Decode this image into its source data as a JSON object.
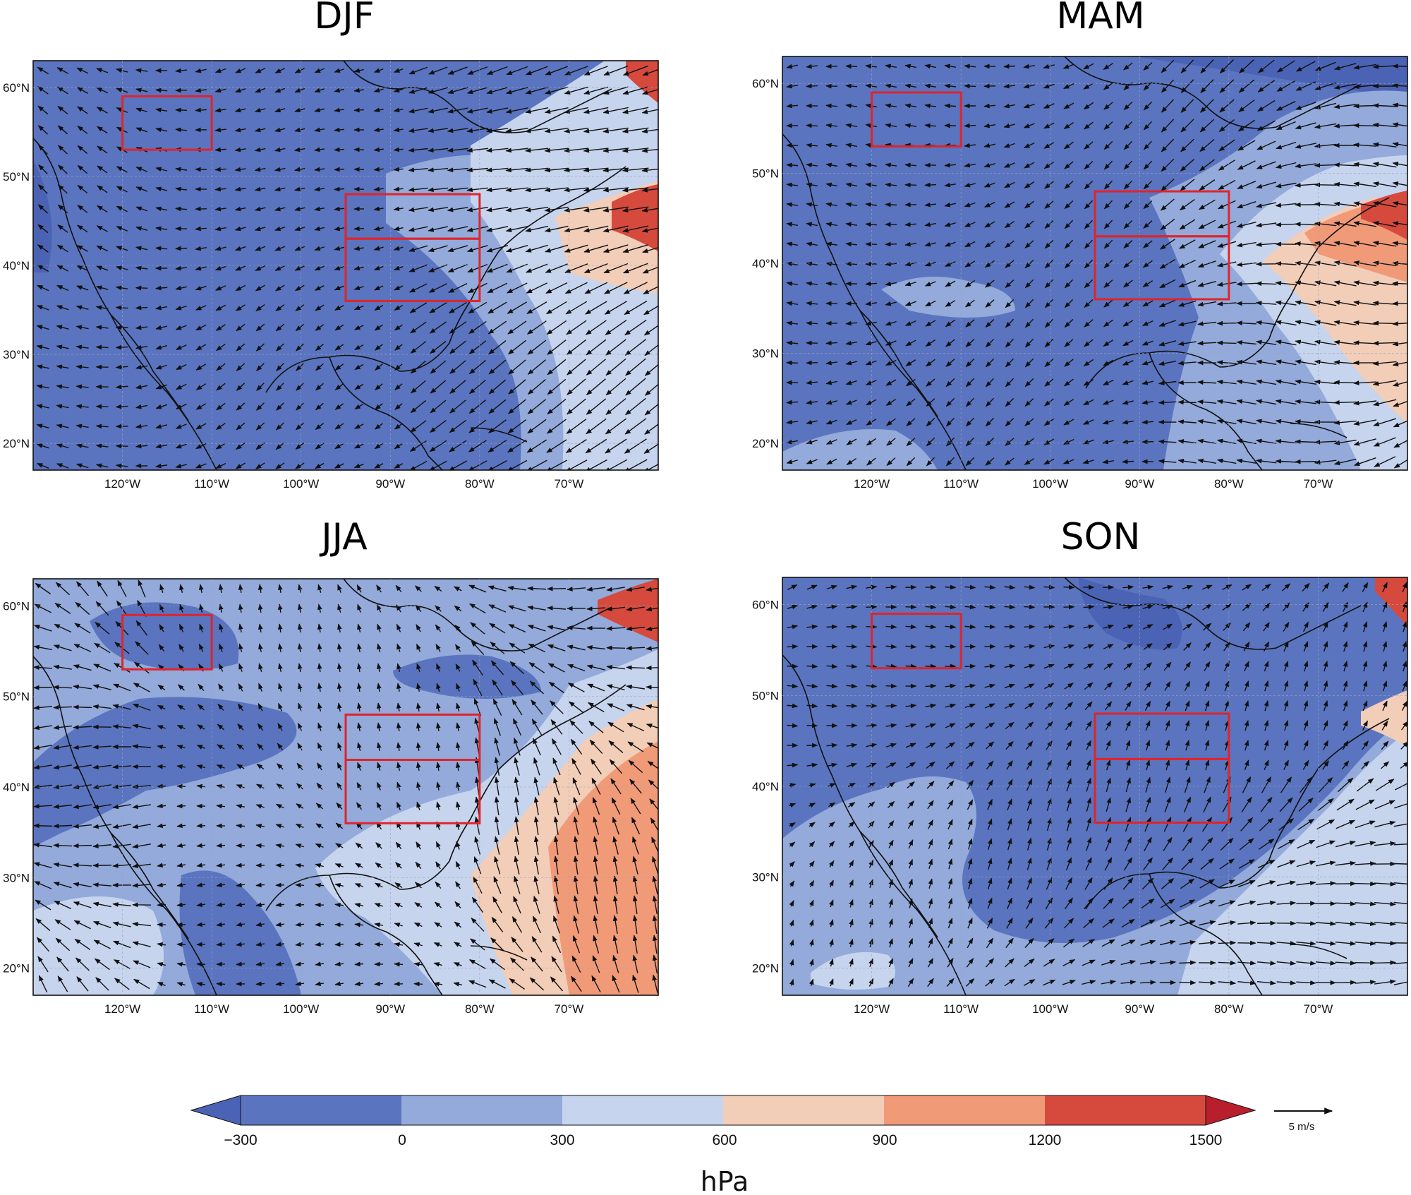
{
  "figure": {
    "panels": [
      {
        "id": "djf",
        "title": "DJF",
        "background": "#5a74bf",
        "y_labels": [
          "60°N",
          "50°N",
          "40°N",
          "30°N",
          "20°N"
        ],
        "x_labels": [
          "120°W",
          "110°W",
          "100°W",
          "90°W",
          "80°W",
          "70°W"
        ]
      },
      {
        "id": "mam",
        "title": "MAM",
        "background": "#5a74bf",
        "y_labels": [
          "60°N",
          "50°N",
          "40°N",
          "30°N",
          "20°N"
        ],
        "x_labels": [
          "120°W",
          "110°W",
          "100°W",
          "90°W",
          "80°W",
          "70°W"
        ]
      },
      {
        "id": "jja",
        "title": "JJA",
        "background": "#93aadb",
        "y_labels": [
          "60°N",
          "50°N",
          "40°N",
          "30°N",
          "20°N"
        ],
        "x_labels": [
          "120°W",
          "110°W",
          "100°W",
          "90°W",
          "80°W",
          "70°W"
        ]
      },
      {
        "id": "son",
        "title": "SON",
        "background": "#5a74bf",
        "y_labels": [
          "60°N",
          "50°N",
          "40°N",
          "30°N",
          "20°N"
        ],
        "x_labels": [
          "120°W",
          "110°W",
          "100°W",
          "90°W",
          "80°W",
          "70°W"
        ]
      }
    ],
    "map_extent": {
      "lon_min": -130,
      "lon_max": -60,
      "lat_min": 17,
      "lat_max": 63
    },
    "regions": [
      {
        "lon_min": -120,
        "lon_max": -110,
        "lat_min": 53,
        "lat_max": 59
      },
      {
        "lon_min": -95,
        "lon_max": -80,
        "lat_min": 43,
        "lat_max": 48
      },
      {
        "lon_min": -95,
        "lon_max": -80,
        "lat_min": 36,
        "lat_max": 43
      }
    ],
    "region_color": "#e0242a",
    "colorbar": {
      "unit": "hPa",
      "tick_labels": [
        "−300",
        "0",
        "300",
        "600",
        "900",
        "1200",
        "1500"
      ],
      "colors": [
        "#4b63b5",
        "#5a74bf",
        "#93aadb",
        "#c6d4ee",
        "#f2cdb8",
        "#f19a78",
        "#d64a3e",
        "#b81f2c"
      ]
    },
    "reference_vector": {
      "label": "5 m/s"
    }
  }
}
